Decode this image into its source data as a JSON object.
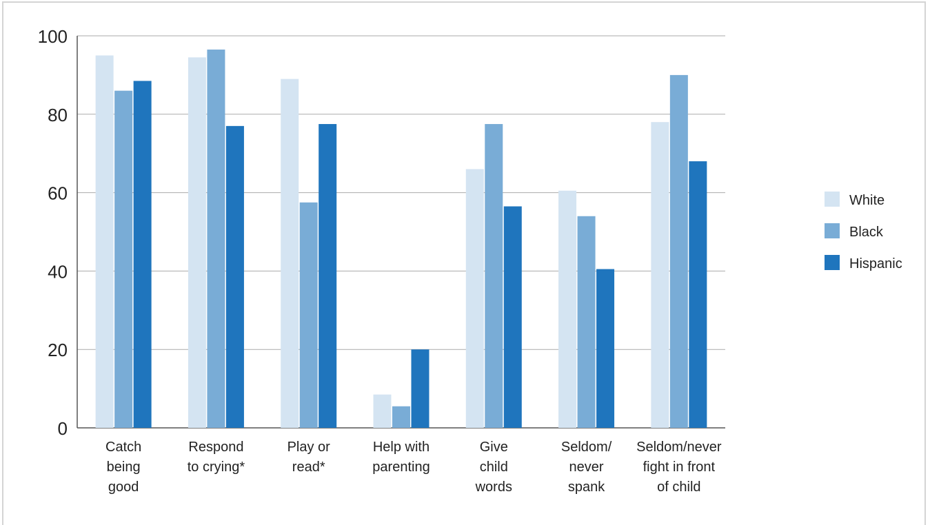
{
  "chart_data": {
    "type": "bar",
    "title": "",
    "xlabel": "",
    "ylabel": "",
    "ylim": [
      0,
      100
    ],
    "yticks": [
      0,
      20,
      40,
      60,
      80,
      100
    ],
    "grid": true,
    "legend_position": "right",
    "categories": [
      [
        "Catch",
        "being",
        "good"
      ],
      [
        "Respond",
        "to crying*"
      ],
      [
        "Play or",
        "read*"
      ],
      [
        "Help with",
        "parenting"
      ],
      [
        "Give",
        "child",
        "words"
      ],
      [
        "Seldom/",
        "never",
        "spank"
      ],
      [
        "Seldom/never",
        "fight in front",
        "of child"
      ]
    ],
    "series": [
      {
        "name": "White",
        "color": "#d4e4f2",
        "values": [
          95,
          94.5,
          89,
          8.5,
          66,
          60.5,
          78
        ]
      },
      {
        "name": "Black",
        "color": "#79acd6",
        "values": [
          86,
          96.5,
          57.5,
          5.5,
          77.5,
          54,
          90
        ]
      },
      {
        "name": "Hispanic",
        "color": "#1f75bd",
        "values": [
          88.5,
          77,
          77.5,
          20,
          56.5,
          40.5,
          68
        ]
      }
    ]
  }
}
